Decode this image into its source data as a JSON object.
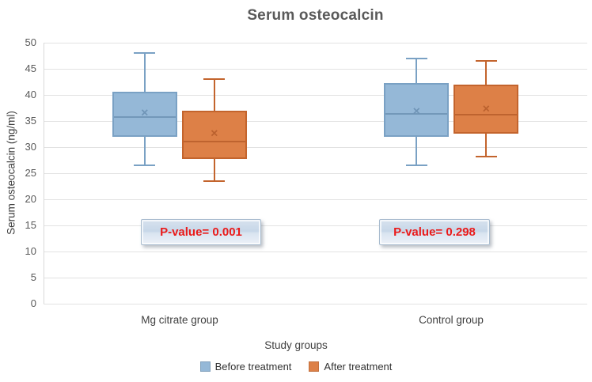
{
  "chart_data": {
    "type": "boxplot",
    "title": "Serum osteocalcin",
    "xlabel": "Study groups",
    "ylabel": "Serum osteocalcin (ng/ml)",
    "ylim": [
      0,
      50
    ],
    "yticks": [
      0,
      5,
      10,
      15,
      20,
      25,
      30,
      35,
      40,
      45,
      50
    ],
    "grid": true,
    "gridline_color": "#e2e2e2",
    "legend_position": "bottom",
    "categories": [
      "Mg citrate group",
      "Control group"
    ],
    "series": [
      {
        "name": "Before treatment",
        "fill": "#95b8d7",
        "border": "#7aa1c4",
        "median_color": "#6d92b4",
        "boxes": [
          {
            "min": 26.5,
            "q1": 31.9,
            "median": 35.8,
            "mean": 36.4,
            "q3": 40.6,
            "max": 48.0
          },
          {
            "min": 26.5,
            "q1": 32.0,
            "median": 36.3,
            "mean": 36.7,
            "q3": 42.2,
            "max": 47.0
          }
        ]
      },
      {
        "name": "After treatment",
        "fill": "#dd8047",
        "border": "#c3642d",
        "median_color": "#b85e2c",
        "boxes": [
          {
            "min": 23.5,
            "q1": 27.8,
            "median": 31.0,
            "mean": 32.4,
            "q3": 37.0,
            "max": 43.0
          },
          {
            "min": 28.2,
            "q1": 32.6,
            "median": 36.2,
            "mean": 37.1,
            "q3": 41.9,
            "max": 46.5
          }
        ]
      }
    ],
    "annotations": [
      {
        "text": "P-value= 0.001",
        "category": "Mg citrate group",
        "text_color": "#ea1b1b"
      },
      {
        "text": "P-value= 0.298",
        "category": "Control group",
        "text_color": "#ea1b1b"
      }
    ]
  }
}
